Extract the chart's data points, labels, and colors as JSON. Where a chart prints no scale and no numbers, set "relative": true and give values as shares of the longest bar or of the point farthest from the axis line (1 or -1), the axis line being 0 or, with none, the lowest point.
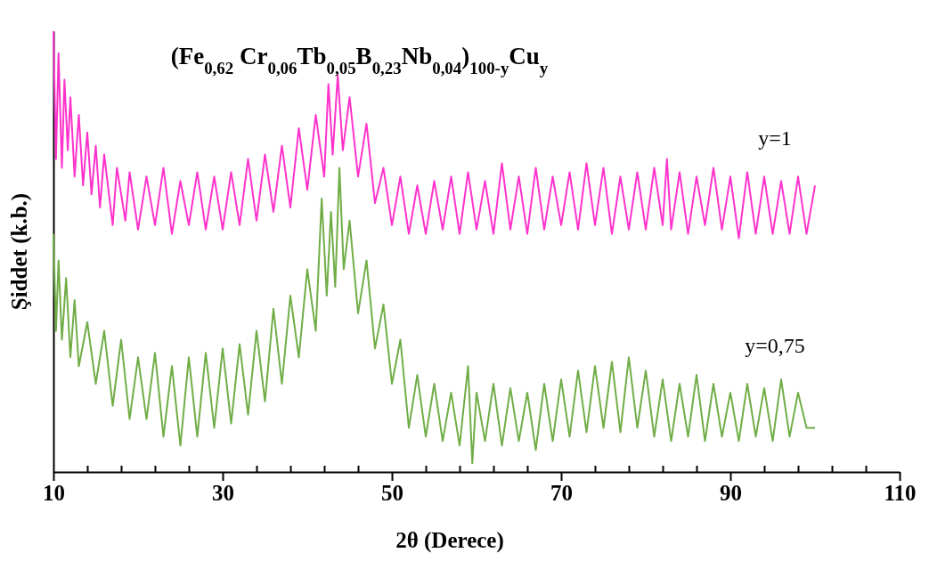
{
  "chart_data": {
    "type": "line",
    "title": "(Fe$_{0,62}$ Cr$_{0,06}$Tb$_{0,05}$B$_{0,23}$Nb$_{0,04}$)$_{100-y}$Cu$_{y}$",
    "xlabel": "2θ (Derece)",
    "ylabel": "Şiddet (k.b.)",
    "relative": true,
    "xlim": [
      10,
      110
    ],
    "xticks": [
      10,
      {
        "value": 14,
        "label": null
      },
      {
        "value": 18,
        "label": null
      },
      {
        "value": 22,
        "label": null
      },
      {
        "value": 26,
        "label": null
      },
      30,
      {
        "value": 34,
        "label": null
      },
      {
        "value": 38,
        "label": null
      },
      {
        "value": 42,
        "label": null
      },
      {
        "value": 46,
        "label": null
      },
      50,
      {
        "value": 54,
        "label": null
      },
      {
        "value": 58,
        "label": null
      },
      {
        "value": 62,
        "label": null
      },
      {
        "value": 66,
        "label": null
      },
      70,
      {
        "value": 74,
        "label": null
      },
      {
        "value": 78,
        "label": null
      },
      {
        "value": 82,
        "label": null
      },
      {
        "value": 86,
        "label": null
      },
      90,
      {
        "value": 94,
        "label": null
      },
      {
        "value": 98,
        "label": null
      },
      {
        "value": 102,
        "label": null
      },
      {
        "value": 106,
        "label": null
      },
      110
    ],
    "grid": false,
    "legend": false,
    "series": [
      {
        "name": "y=1",
        "color": "#ff33cc",
        "x": [
          10,
          10.3,
          10.6,
          11,
          11.3,
          11.7,
          12,
          12.5,
          13,
          13.5,
          14,
          14.5,
          15,
          15.5,
          16,
          17,
          17.5,
          18.5,
          19,
          20,
          21,
          22,
          23,
          24,
          25,
          26,
          27,
          28,
          29,
          30,
          31,
          32,
          33,
          34,
          35,
          36,
          37,
          38,
          39,
          40,
          41,
          42,
          42.5,
          43,
          43.6,
          44.2,
          45,
          46,
          47,
          48,
          49,
          50,
          51,
          52,
          53,
          54,
          55,
          56,
          57,
          58,
          59,
          60,
          61,
          62,
          63,
          64,
          65,
          66,
          67,
          68,
          69,
          70,
          71,
          72,
          73,
          74,
          75,
          76,
          77,
          78,
          79,
          80,
          81,
          82,
          82.5,
          83,
          84,
          85,
          86,
          87,
          88,
          89,
          90,
          91,
          92,
          93,
          94,
          95,
          96,
          97,
          98,
          99,
          100
        ],
        "values": [
          1.0,
          0.71,
          0.95,
          0.69,
          0.89,
          0.73,
          0.85,
          0.67,
          0.81,
          0.65,
          0.77,
          0.63,
          0.74,
          0.6,
          0.72,
          0.56,
          0.69,
          0.57,
          0.68,
          0.55,
          0.67,
          0.56,
          0.69,
          0.54,
          0.66,
          0.56,
          0.68,
          0.55,
          0.67,
          0.55,
          0.68,
          0.56,
          0.71,
          0.57,
          0.72,
          0.59,
          0.74,
          0.6,
          0.78,
          0.64,
          0.81,
          0.67,
          0.88,
          0.72,
          0.9,
          0.73,
          0.85,
          0.67,
          0.79,
          0.61,
          0.69,
          0.56,
          0.67,
          0.54,
          0.65,
          0.54,
          0.66,
          0.55,
          0.67,
          0.54,
          0.68,
          0.55,
          0.66,
          0.54,
          0.7,
          0.55,
          0.67,
          0.54,
          0.69,
          0.55,
          0.67,
          0.56,
          0.68,
          0.55,
          0.7,
          0.56,
          0.69,
          0.54,
          0.67,
          0.55,
          0.68,
          0.55,
          0.69,
          0.56,
          0.71,
          0.55,
          0.68,
          0.54,
          0.67,
          0.56,
          0.69,
          0.55,
          0.67,
          0.53,
          0.68,
          0.54,
          0.67,
          0.54,
          0.66,
          0.54,
          0.67,
          0.54,
          0.65
        ]
      },
      {
        "name": "y=0,75",
        "color": "#70ad47",
        "x": [
          10,
          10.3,
          10.6,
          11,
          11.5,
          12,
          12.5,
          13,
          14,
          15,
          16,
          17,
          18,
          19,
          20,
          21,
          22,
          23,
          24,
          25,
          26,
          27,
          28,
          29,
          30,
          31,
          32,
          33,
          34,
          35,
          36,
          37,
          38,
          39,
          40,
          41,
          41.7,
          42.3,
          42.8,
          43.3,
          43.8,
          44.3,
          45,
          46,
          47,
          48,
          49,
          50,
          51,
          52,
          53,
          54,
          55,
          56,
          57,
          58,
          59,
          59.5,
          60,
          61,
          62,
          63,
          64,
          65,
          66,
          67,
          68,
          69,
          70,
          71,
          72,
          73,
          74,
          75,
          76,
          77,
          78,
          79,
          80,
          81,
          82,
          83,
          84,
          85,
          86,
          87,
          88,
          89,
          90,
          91,
          92,
          93,
          94,
          95,
          96,
          97,
          98,
          99,
          100
        ],
        "values": [
          0.54,
          0.32,
          0.48,
          0.3,
          0.44,
          0.26,
          0.39,
          0.24,
          0.34,
          0.2,
          0.32,
          0.15,
          0.3,
          0.12,
          0.26,
          0.12,
          0.27,
          0.08,
          0.24,
          0.06,
          0.26,
          0.08,
          0.27,
          0.1,
          0.28,
          0.11,
          0.29,
          0.13,
          0.32,
          0.16,
          0.37,
          0.2,
          0.4,
          0.26,
          0.46,
          0.32,
          0.62,
          0.4,
          0.59,
          0.42,
          0.69,
          0.46,
          0.57,
          0.36,
          0.48,
          0.28,
          0.38,
          0.2,
          0.3,
          0.1,
          0.22,
          0.08,
          0.2,
          0.07,
          0.18,
          0.06,
          0.24,
          0.02,
          0.18,
          0.07,
          0.2,
          0.06,
          0.19,
          0.07,
          0.18,
          0.05,
          0.2,
          0.07,
          0.21,
          0.08,
          0.23,
          0.09,
          0.24,
          0.1,
          0.25,
          0.09,
          0.26,
          0.1,
          0.23,
          0.08,
          0.21,
          0.07,
          0.2,
          0.08,
          0.22,
          0.07,
          0.2,
          0.08,
          0.18,
          0.07,
          0.2,
          0.08,
          0.19,
          0.07,
          0.21,
          0.08,
          0.18,
          0.1,
          0.1
        ]
      }
    ]
  }
}
